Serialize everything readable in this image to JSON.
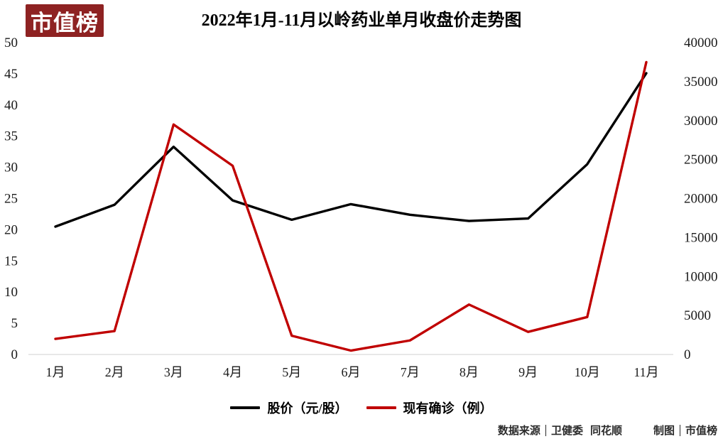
{
  "logo": {
    "text": "市值榜",
    "bg_color": "#8e2222",
    "text_color": "#ffffff"
  },
  "title": "2022年1月-11月以岭药业单月收盘价走势图",
  "chart_data": {
    "type": "line",
    "categories": [
      "1月",
      "2月",
      "3月",
      "4月",
      "5月",
      "6月",
      "7月",
      "8月",
      "9月",
      "10月",
      "11月"
    ],
    "series": [
      {
        "name": "股价（元/股）",
        "axis": "left",
        "color": "#000000",
        "values": [
          20.5,
          24.0,
          33.3,
          24.7,
          21.6,
          24.1,
          22.4,
          21.4,
          21.8,
          30.5,
          45.1
        ]
      },
      {
        "name": "现有确诊（例）",
        "axis": "right",
        "color": "#c00000",
        "values": [
          2000,
          3000,
          29500,
          24200,
          2400,
          500,
          1800,
          6400,
          2900,
          4800,
          37500
        ]
      }
    ],
    "left_axis": {
      "min": 0,
      "max": 50,
      "step": 5,
      "ticks": [
        "0",
        "5",
        "10",
        "15",
        "20",
        "25",
        "30",
        "35",
        "40",
        "45",
        "50"
      ]
    },
    "right_axis": {
      "min": 0,
      "max": 40000,
      "step": 5000,
      "ticks": [
        "0",
        "5000",
        "10000",
        "15000",
        "20000",
        "25000",
        "30000",
        "35000",
        "40000"
      ]
    },
    "grid": false,
    "legend_position": "bottom",
    "axis_line_color": "#d9d9d9"
  },
  "footer": {
    "source_label": "数据来源",
    "source_value": "卫健委",
    "source_value2": "同花顺",
    "credit_label": "制图",
    "credit_value": "市值榜"
  }
}
